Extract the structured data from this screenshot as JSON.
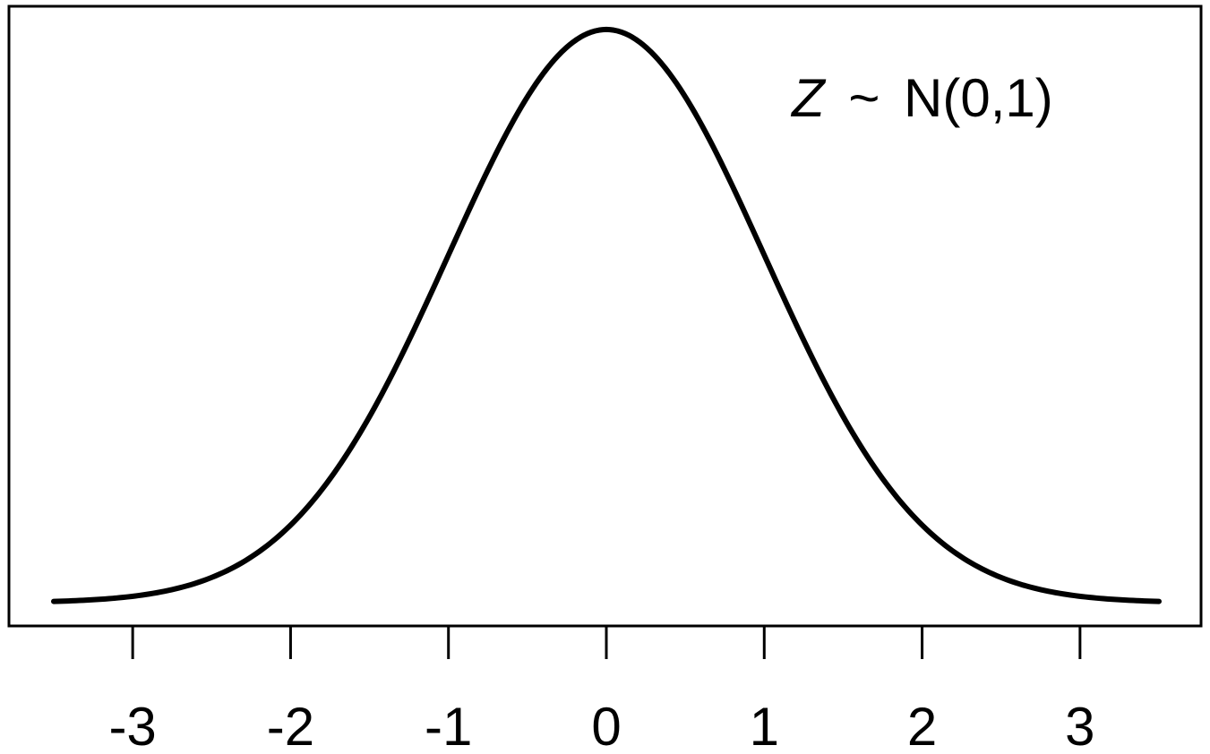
{
  "chart_data": {
    "type": "line",
    "title": "",
    "xlabel": "",
    "ylabel": "",
    "xlim": [
      -3.5,
      3.5
    ],
    "ylim": [
      0,
      0.3989
    ],
    "grid": false,
    "distribution": "standard normal density",
    "mean": 0,
    "sd": 1,
    "x_ticks": [
      -3,
      -2,
      -1,
      0,
      1,
      2,
      3
    ],
    "x_tick_labels": [
      "-3",
      "-2",
      "-1",
      "0",
      "1",
      "2",
      "3"
    ],
    "y_axis_shown": false,
    "annotation": {
      "var": "Z",
      "tilde": "~",
      "dist": "N(0,1)"
    },
    "series": [
      {
        "x": [
          -3.5,
          -3.0,
          -2.5,
          -2.0,
          -1.5,
          -1.0,
          -0.5,
          0.0,
          0.5,
          1.0,
          1.5,
          2.0,
          2.5,
          3.0,
          3.5
        ],
        "values": [
          0.0009,
          0.0044,
          0.0175,
          0.054,
          0.1295,
          0.242,
          0.3521,
          0.3989,
          0.3521,
          0.242,
          0.1295,
          0.054,
          0.0175,
          0.0044,
          0.0009
        ]
      }
    ]
  }
}
